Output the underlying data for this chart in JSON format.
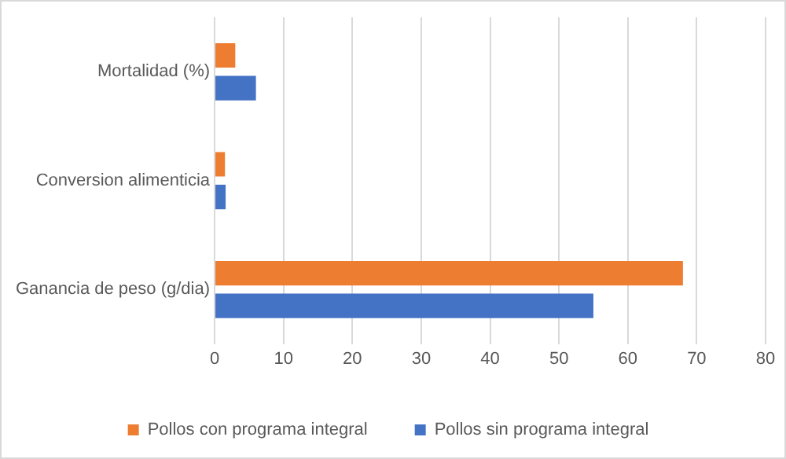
{
  "chart_data": {
    "type": "bar",
    "orientation": "horizontal",
    "categories": [
      "Mortalidad (%)",
      "Conversion alimenticia",
      "Ganancia de peso (g/dia)"
    ],
    "series": [
      {
        "name": "Pollos con programa integral",
        "color": "#ed7d31",
        "values": [
          3,
          1.5,
          68
        ]
      },
      {
        "name": "Pollos sin programa integral",
        "color": "#4472c4",
        "values": [
          6,
          1.6,
          55
        ]
      }
    ],
    "xlim": [
      0,
      80
    ],
    "xticks": [
      0,
      10,
      20,
      30,
      40,
      50,
      60,
      70,
      80
    ],
    "grid": "x",
    "legend": "bottom"
  }
}
